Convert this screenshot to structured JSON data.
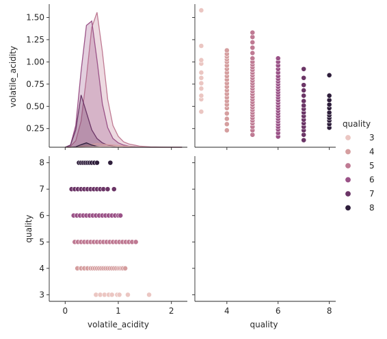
{
  "chart_data": {
    "type": "scatter",
    "variables": [
      "volatile_acidity",
      "quality"
    ],
    "hue": "quality",
    "legend": {
      "title": "quality",
      "placement": "right",
      "levels": [
        3,
        4,
        5,
        6,
        7,
        8
      ]
    },
    "colors": {
      "3": "#ebc6c2",
      "4": "#d59e9f",
      "5": "#bf7a93",
      "6": "#9a5287",
      "7": "#6b3566",
      "8": "#2e1e3b"
    },
    "panels": {
      "top_left": {
        "kind": "kde",
        "ylabel": "volatile_acidity",
        "ytick_labels": [
          "0.25",
          "0.50",
          "0.75",
          "1.00",
          "1.25",
          "1.50"
        ],
        "ylim": [
          0.04,
          1.65
        ],
        "xlim": [
          -0.3,
          2.3
        ],
        "ridge_x": [
          0.0,
          0.1,
          0.2,
          0.3,
          0.4,
          0.5,
          0.6,
          0.7,
          0.8,
          0.9,
          1.0,
          1.1,
          1.2,
          1.3,
          1.4,
          1.6,
          1.8,
          2.0,
          2.2
        ],
        "curves": [
          {
            "level": "5",
            "y": [
              0,
              0.004,
              0.03,
              0.12,
              0.32,
              0.55,
              0.62,
              0.44,
              0.22,
              0.1,
              0.05,
              0.025,
              0.015,
              0.01,
              0.005,
              0.002,
              0.001,
              0,
              0
            ]
          },
          {
            "level": "6",
            "y": [
              0,
              0.01,
              0.1,
              0.35,
              0.56,
              0.58,
              0.4,
              0.2,
              0.09,
              0.04,
              0.02,
              0.01,
              0.005,
              0.003,
              0.001,
              0,
              0,
              0,
              0
            ]
          },
          {
            "level": "7",
            "y": [
              0,
              0.01,
              0.08,
              0.24,
              0.16,
              0.08,
              0.04,
              0.02,
              0.01,
              0.005,
              0.002,
              0,
              0,
              0,
              0,
              0,
              0,
              0,
              0
            ]
          },
          {
            "level": "4",
            "y": [
              0,
              0,
              0.001,
              0.004,
              0.008,
              0.012,
              0.016,
              0.014,
              0.012,
              0.01,
              0.008,
              0.006,
              0.004,
              0.002,
              0.001,
              0,
              0,
              0,
              0
            ]
          },
          {
            "level": "8",
            "y": [
              0,
              0,
              0.002,
              0.012,
              0.02,
              0.01,
              0.004,
              0.002,
              0.001,
              0,
              0,
              0,
              0,
              0,
              0,
              0,
              0,
              0,
              0
            ]
          },
          {
            "level": "3",
            "y": [
              0,
              0,
              0,
              0,
              0.001,
              0.002,
              0.003,
              0.004,
              0.004,
              0.003,
              0.003,
              0.002,
              0.002,
              0.001,
              0.001,
              0,
              0,
              0,
              0
            ]
          }
        ]
      },
      "top_right": {
        "kind": "scatter",
        "xlim": [
          2.75,
          8.25
        ],
        "ylim": [
          0.04,
          1.65
        ],
        "points": [
          {
            "x": 3,
            "y": [
              0.44,
              0.58,
              0.62,
              0.7,
              0.76,
              0.82,
              0.88,
              0.98,
              1.02,
              1.18,
              1.58
            ]
          },
          {
            "x": 4,
            "y": [
              0.23,
              0.3,
              0.36,
              0.42,
              0.48,
              0.52,
              0.56,
              0.6,
              0.64,
              0.68,
              0.72,
              0.76,
              0.8,
              0.84,
              0.88,
              0.92,
              0.96,
              1.0,
              1.03,
              1.06,
              1.09,
              1.13
            ]
          },
          {
            "x": 5,
            "y": [
              0.18,
              0.23,
              0.27,
              0.31,
              0.34,
              0.37,
              0.4,
              0.43,
              0.46,
              0.49,
              0.52,
              0.55,
              0.58,
              0.61,
              0.64,
              0.67,
              0.7,
              0.73,
              0.76,
              0.79,
              0.82,
              0.85,
              0.88,
              0.91,
              0.94,
              0.97,
              1.0,
              1.04,
              1.1,
              1.16,
              1.22,
              1.28,
              1.33
            ]
          },
          {
            "x": 6,
            "y": [
              0.16,
              0.2,
              0.24,
              0.27,
              0.3,
              0.33,
              0.36,
              0.39,
              0.42,
              0.45,
              0.48,
              0.51,
              0.54,
              0.57,
              0.6,
              0.63,
              0.66,
              0.69,
              0.72,
              0.75,
              0.78,
              0.81,
              0.84,
              0.88,
              0.92,
              0.96,
              1.0,
              1.04
            ]
          },
          {
            "x": 7,
            "y": [
              0.12,
              0.18,
              0.23,
              0.27,
              0.31,
              0.35,
              0.39,
              0.43,
              0.47,
              0.51,
              0.56,
              0.62,
              0.68,
              0.74,
              0.82,
              0.92
            ]
          },
          {
            "x": 8,
            "y": [
              0.26,
              0.3,
              0.34,
              0.37,
              0.4,
              0.43,
              0.48,
              0.52,
              0.57,
              0.62,
              0.85
            ]
          }
        ]
      },
      "bottom_left": {
        "kind": "scatter",
        "xlabel": "volatile_acidity",
        "ylabel": "quality",
        "xtick_labels": [
          "0",
          "1",
          "2"
        ],
        "ytick_labels": [
          "3",
          "4",
          "5",
          "6",
          "7",
          "8"
        ],
        "xlim": [
          -0.3,
          2.3
        ],
        "ylim": [
          2.75,
          8.25
        ],
        "points": [
          {
            "y": 3,
            "x": [
              0.58,
              0.66,
              0.74,
              0.82,
              0.88,
              0.98,
              1.02,
              1.18,
              1.58
            ]
          },
          {
            "y": 4,
            "x": [
              0.23,
              0.3,
              0.36,
              0.42,
              0.48,
              0.52,
              0.56,
              0.6,
              0.64,
              0.68,
              0.72,
              0.76,
              0.8,
              0.84,
              0.88,
              0.92,
              0.96,
              1.0,
              1.03,
              1.06,
              1.09,
              1.13
            ]
          },
          {
            "y": 5,
            "x": [
              0.18,
              0.24,
              0.3,
              0.36,
              0.42,
              0.48,
              0.54,
              0.6,
              0.66,
              0.72,
              0.78,
              0.84,
              0.9,
              0.96,
              1.02,
              1.08,
              1.14,
              1.2,
              1.26,
              1.33
            ]
          },
          {
            "y": 6,
            "x": [
              0.16,
              0.22,
              0.28,
              0.34,
              0.4,
              0.46,
              0.52,
              0.58,
              0.64,
              0.7,
              0.76,
              0.82,
              0.88,
              0.94,
              1.0,
              1.04
            ]
          },
          {
            "y": 7,
            "x": [
              0.12,
              0.18,
              0.24,
              0.3,
              0.36,
              0.42,
              0.48,
              0.54,
              0.6,
              0.66,
              0.72,
              0.8,
              0.92
            ]
          },
          {
            "y": 8,
            "x": [
              0.26,
              0.3,
              0.34,
              0.38,
              0.42,
              0.46,
              0.5,
              0.55,
              0.6,
              0.85
            ]
          }
        ]
      },
      "bottom_right": {
        "kind": "empty",
        "xlabel": "quality",
        "xtick_labels": [
          "4",
          "6",
          "8"
        ],
        "xlim": [
          2.75,
          8.25
        ],
        "ylim": [
          2.75,
          8.25
        ]
      }
    }
  }
}
